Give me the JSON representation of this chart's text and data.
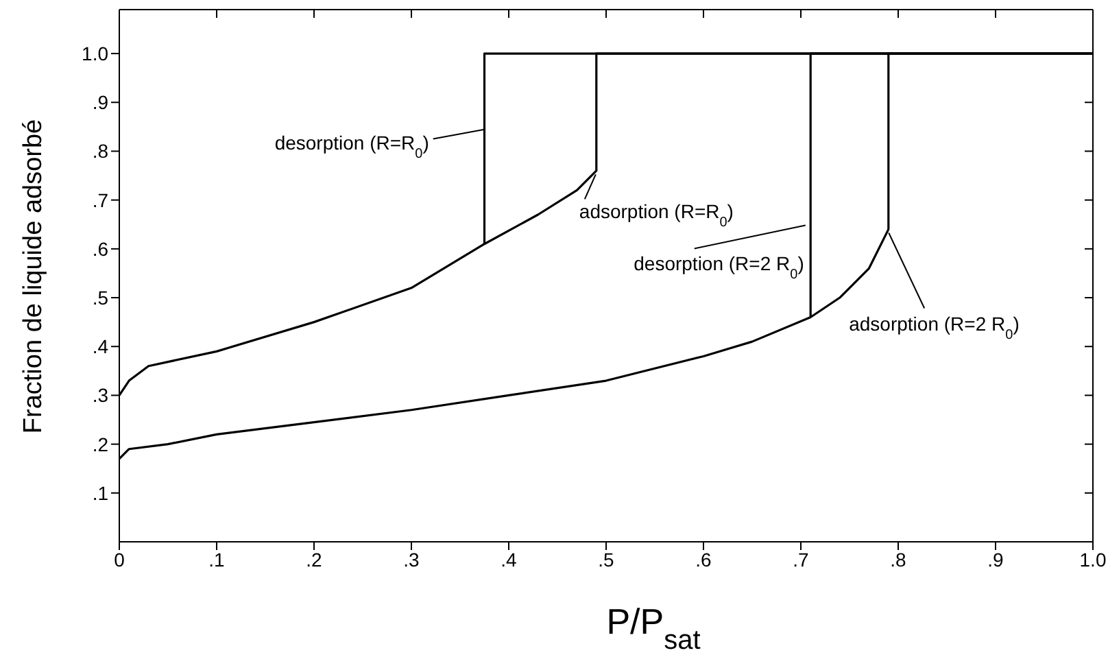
{
  "chart_data": {
    "type": "line",
    "xlabel": "P/P$_{sat}$",
    "ylabel": "Fraction de liquide adsorbé",
    "xlim": [
      0,
      1.0
    ],
    "ylim": [
      0,
      1.09
    ],
    "xticks": [
      {
        "value": 0,
        "label": "0"
      },
      {
        "value": 0.1,
        "label": ".1"
      },
      {
        "value": 0.2,
        "label": ".2"
      },
      {
        "value": 0.3,
        "label": ".3"
      },
      {
        "value": 0.4,
        "label": ".4"
      },
      {
        "value": 0.5,
        "label": ".5"
      },
      {
        "value": 0.6,
        "label": ".6"
      },
      {
        "value": 0.7,
        "label": ".7"
      },
      {
        "value": 0.8,
        "label": ".8"
      },
      {
        "value": 0.9,
        "label": ".9"
      },
      {
        "value": 1.0,
        "label": "1.0"
      }
    ],
    "yticks": [
      {
        "value": 0.1,
        "label": ".1"
      },
      {
        "value": 0.2,
        "label": ".2"
      },
      {
        "value": 0.3,
        "label": ".3"
      },
      {
        "value": 0.4,
        "label": ".4"
      },
      {
        "value": 0.5,
        "label": ".5"
      },
      {
        "value": 0.6,
        "label": ".6"
      },
      {
        "value": 0.7,
        "label": ".7"
      },
      {
        "value": 0.8,
        "label": ".8"
      },
      {
        "value": 0.9,
        "label": ".9"
      },
      {
        "value": 1.0,
        "label": "1.0"
      }
    ],
    "series": [
      {
        "color": "#000000",
        "x": [
          0,
          0.01,
          0.03,
          0.1,
          0.2,
          0.3,
          0.375,
          0.43,
          0.47,
          0.49,
          0.49,
          1.0
        ],
        "values": [
          0.3,
          0.33,
          0.36,
          0.39,
          0.45,
          0.52,
          0.61,
          0.67,
          0.72,
          0.76,
          1.0,
          1.0
        ]
      },
      {
        "color": "#000000",
        "x": [
          1.0,
          0.375,
          0.375
        ],
        "values": [
          1.0,
          1.0,
          0.61
        ]
      },
      {
        "color": "#000000",
        "x": [
          0,
          0.01,
          0.05,
          0.1,
          0.2,
          0.3,
          0.4,
          0.5,
          0.6,
          0.65,
          0.71,
          0.74,
          0.77,
          0.79,
          0.79,
          1.0
        ],
        "values": [
          0.17,
          0.19,
          0.2,
          0.22,
          0.245,
          0.27,
          0.3,
          0.33,
          0.38,
          0.41,
          0.46,
          0.5,
          0.56,
          0.64,
          1.0,
          1.0
        ]
      },
      {
        "color": "#000000",
        "x": [
          1.0,
          0.71,
          0.71
        ],
        "values": [
          1.0,
          1.0,
          0.46
        ]
      }
    ],
    "annotations": [
      {
        "text": "desorption (R=R$_{0}$)",
        "x": 0.375,
        "y": 0.85
      },
      {
        "text": "adsorption (R=R$_{0}$)",
        "x": 0.49,
        "y": 0.76
      },
      {
        "text": "desorption (R=2 R$_{0}$)",
        "x": 0.71,
        "y": 0.65
      },
      {
        "text": "adsorption (R=2 R$_{0}$)",
        "x": 0.79,
        "y": 0.64
      }
    ]
  }
}
